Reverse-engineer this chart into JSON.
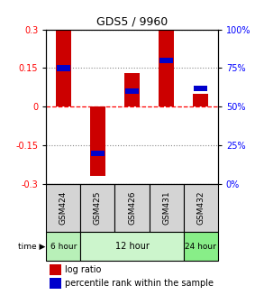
{
  "title": "GDS5 / 9960",
  "samples": [
    "GSM424",
    "GSM425",
    "GSM426",
    "GSM431",
    "GSM432"
  ],
  "log_ratios": [
    0.3,
    -0.27,
    0.13,
    0.3,
    0.05
  ],
  "percentile_ranks": [
    75,
    20,
    60,
    80,
    62
  ],
  "ylim": [
    -0.3,
    0.3
  ],
  "y_ticks_left": [
    -0.3,
    -0.15,
    0,
    0.15,
    0.3
  ],
  "y_ticks_right": [
    0,
    25,
    50,
    75,
    100
  ],
  "bar_color": "#cc0000",
  "percentile_color": "#0000cc",
  "time_labels": [
    "6 hour",
    "12 hour",
    "24 hour"
  ],
  "time_groups": [
    1,
    3,
    1
  ],
  "time_colors_light": [
    "#b8f0b8",
    "#ccf5cc",
    "#88ee88"
  ],
  "bar_width": 0.45,
  "pct_bar_width": 0.38
}
